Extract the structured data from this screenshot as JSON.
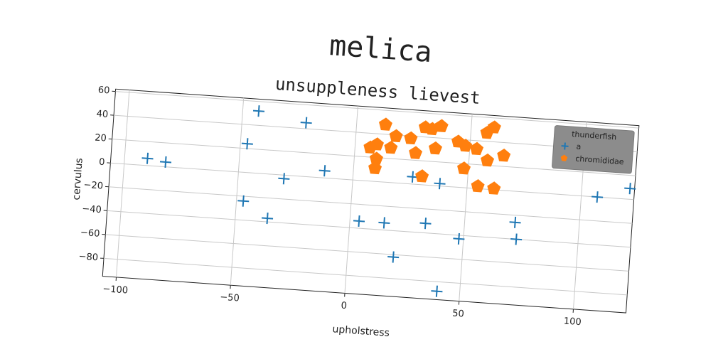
{
  "chart_data": {
    "type": "scatter",
    "title": "melica",
    "subtitle": "unsuppleness lievest",
    "x_label": "upholstress",
    "y_label": "cervulus",
    "xlim": [
      -106,
      123
    ],
    "ylim": [
      -95,
      62
    ],
    "xticks": [
      {
        "value": -100,
        "label": "−100"
      },
      {
        "value": -50,
        "label": "−50"
      },
      0,
      50,
      100
    ],
    "yticks": [
      {
        "value": -80,
        "label": "−80"
      },
      {
        "value": -60,
        "label": "−60"
      },
      {
        "value": -40,
        "label": "−40"
      },
      {
        "value": -20,
        "label": "−20"
      },
      0,
      20,
      40,
      60
    ],
    "grid": true,
    "legend_title": "thunderfish",
    "legend_position": "upper right",
    "series": [
      {
        "name": "a",
        "color": "#1f77b4",
        "marker": "plus",
        "x": [
          -90,
          -82,
          -43,
          -22,
          -47,
          -12.5,
          -30,
          -47,
          -36,
          26,
          38,
          4,
          15,
          33,
          20,
          48,
          40,
          72,
          73,
          91,
          107,
          121
        ],
        "values": [
          6,
          4,
          52,
          45,
          24,
          6,
          -3,
          -24,
          -37,
          6,
          2,
          -34,
          -34,
          -32,
          -62,
          -43,
          -88,
          -26,
          -40,
          32,
          0,
          9
        ]
      },
      {
        "name": "chromididae",
        "color": "#ff7f0e",
        "marker": "pentagon",
        "x": [
          12.6,
          9.5,
          17.5,
          24,
          15.6,
          26.5,
          9.6,
          9.3,
          30,
          35,
          33,
          37,
          44.7,
          48,
          53,
          48,
          57,
          60,
          58,
          65,
          54.6,
          61.7,
          30,
          6.6
        ],
        "values": [
          48,
          31,
          39,
          38,
          29,
          26,
          19,
          11,
          48,
          31,
          47,
          50,
          38,
          35,
          33,
          16,
          47,
          52,
          24,
          29,
          2,
          1,
          7,
          28
        ]
      }
    ]
  }
}
